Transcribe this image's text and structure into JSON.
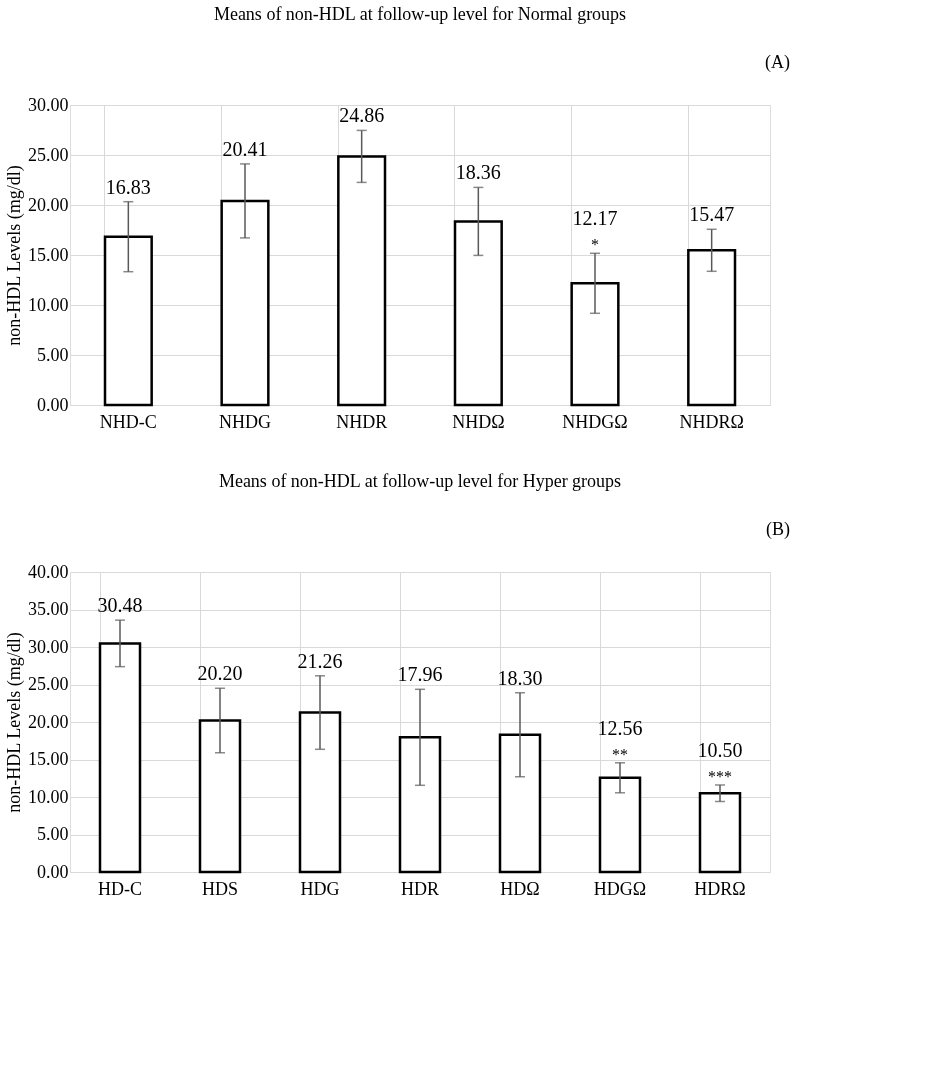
{
  "chart_data": [
    {
      "type": "bar",
      "title": "Means of non-HDL at follow-up level for Normal groups",
      "ylabel": "non-HDL Levels (mg/dl)",
      "categories": [
        "NHD-C",
        "NHDG",
        "NHDR",
        "NHDΩ",
        "NHDGΩ",
        "NHDRΩ"
      ],
      "values": [
        16.83,
        20.41,
        24.86,
        18.36,
        12.17,
        15.47
      ],
      "errors": [
        3.5,
        3.7,
        2.6,
        3.4,
        3.0,
        2.1
      ],
      "value_labels": [
        "16.83",
        "20.41",
        "24.86",
        "18.36",
        "12.17",
        "15.47"
      ],
      "color": "#000000",
      "grid": true,
      "ylim": [
        0,
        30
      ],
      "yticks": [
        {
          "value": 0,
          "label": "0.00"
        },
        {
          "value": 5,
          "label": "5.00"
        },
        {
          "value": 10,
          "label": "10.00"
        },
        {
          "value": 15,
          "label": "15.00"
        },
        {
          "value": 20,
          "label": "20.00"
        },
        {
          "value": 25,
          "label": "25.00"
        },
        {
          "value": 30,
          "label": "30.00"
        }
      ],
      "annotations": [
        "(A)",
        {
          "text": "*",
          "x": "NHDGΩ",
          "y": 15.2
        }
      ]
    },
    {
      "type": "bar",
      "title": "Means of non-HDL at follow-up level for Hyper groups",
      "ylabel": "non-HDL Levels (mg/dl)",
      "categories": [
        "HD-C",
        "HDS",
        "HDG",
        "HDR",
        "HDΩ",
        "HDGΩ",
        "HDRΩ"
      ],
      "values": [
        30.48,
        20.2,
        21.26,
        17.96,
        18.3,
        12.56,
        10.5
      ],
      "errors": [
        3.1,
        4.3,
        4.9,
        6.4,
        5.6,
        2.0,
        1.1
      ],
      "value_labels": [
        "30.48",
        "20.20",
        "21.26",
        "17.96",
        "18.30",
        "12.56",
        "10.50"
      ],
      "color": "#000000",
      "grid": true,
      "ylim": [
        0,
        40
      ],
      "yticks": [
        {
          "value": 0,
          "label": "0.00"
        },
        {
          "value": 5,
          "label": "5.00"
        },
        {
          "value": 10,
          "label": "10.00"
        },
        {
          "value": 15,
          "label": "15.00"
        },
        {
          "value": 20,
          "label": "20.00"
        },
        {
          "value": 25,
          "label": "25.00"
        },
        {
          "value": 30,
          "label": "30.00"
        },
        {
          "value": 35,
          "label": "35.00"
        },
        {
          "value": 40,
          "label": "40.00"
        }
      ],
      "annotations": [
        "(B)",
        {
          "text": "**",
          "x": "HDGΩ",
          "y": 14.6
        },
        {
          "text": "***",
          "x": "HDRΩ",
          "y": 11.6
        }
      ]
    }
  ]
}
